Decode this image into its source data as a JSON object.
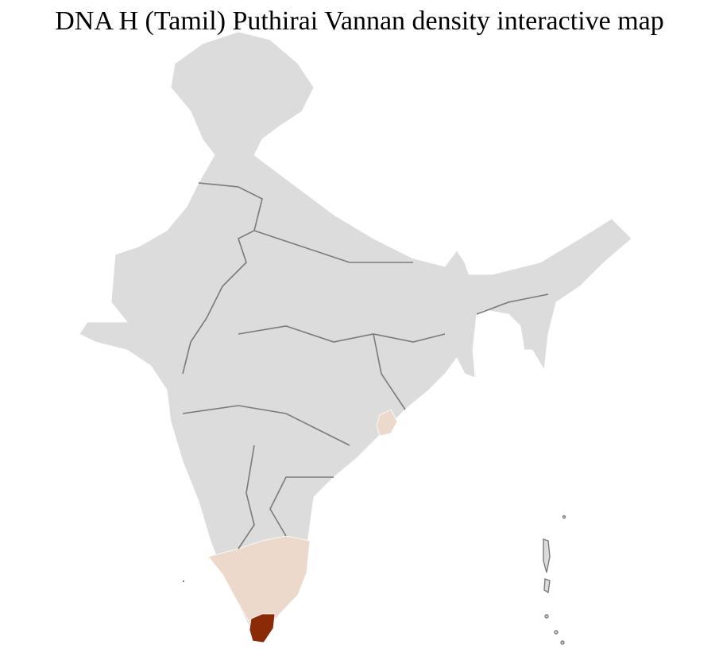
{
  "title": "DNA H (Tamil) Puthirai Vannan density interactive map",
  "colors": {
    "no_data": "#dcdcdc",
    "low_density": "#ecd9cc",
    "high_density": "#8b2a07",
    "state_border": "#7a7a7a",
    "district_border": "#ffffff"
  },
  "highlighted_regions": [
    {
      "area": "Tamil Nadu / Kerala / south Karnataka districts",
      "level": "low"
    },
    {
      "area": "coastal Andhra Pradesh / Odisha district",
      "level": "low"
    },
    {
      "area": "southern Tamil Nadu districts",
      "level": "high"
    }
  ]
}
